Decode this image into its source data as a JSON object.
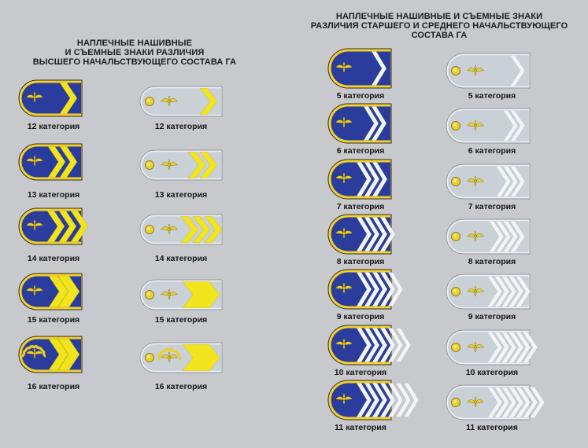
{
  "headings": {
    "left": [
      "НАПЛЕЧНЫЕ НАШИВНЫЕ",
      "И СЪЕМНЫЕ ЗНАКИ РАЗЛИЧИЯ",
      "ВЫСШЕГО НАЧАЛЬСТВУЮЩЕГО СОСТАВА ГА"
    ],
    "right": [
      "НАПЛЕЧНЫЕ НАШИВНЫЕ И СЪЕМНЫЕ ЗНАКИ",
      "РАЗЛИЧИЯ СТАРШЕГО И СРЕДНЕГО НАЧАЛЬСТВУЮЩЕГО",
      "СОСТАВА ГА"
    ]
  },
  "colors": {
    "background": "#c8c9cc",
    "sewn_field": "#2b3d9c",
    "sewn_border": "#f0d22a",
    "removable_field": "#c9d0d6",
    "removable_border": "#ecf0f4",
    "gold_emblem": "#ead02a",
    "gold_chevron": "#f2e41c",
    "white_chevron": "#f2f5f7"
  },
  "icons": {
    "emblem": "winged-propeller-emblem-icon",
    "button": "shoulder-button-icon"
  },
  "groups": {
    "highest": {
      "chevron_color": "gold",
      "items": [
        {
          "caption": "12 категория",
          "chevrons": 1
        },
        {
          "caption": "13 категория",
          "chevrons": 2
        },
        {
          "caption": "14 категория",
          "chevrons": 3
        },
        {
          "caption": "15 категория",
          "chevrons": 1,
          "wide": true
        },
        {
          "caption": "16 категория",
          "chevrons": 1,
          "wide": true,
          "wreath": true
        }
      ]
    },
    "senior": {
      "chevron_color": "white",
      "items": [
        {
          "caption": "5 категория",
          "chevrons": 1
        },
        {
          "caption": "6 категория",
          "chevrons": 2
        },
        {
          "caption": "7 категория",
          "chevrons": 3
        },
        {
          "caption": "8 категория",
          "chevrons": 4
        },
        {
          "caption": "9 категория",
          "chevrons": 5
        },
        {
          "caption": "10 категория",
          "chevrons": 6
        },
        {
          "caption": "11 категория",
          "chevrons": 7
        }
      ]
    }
  }
}
